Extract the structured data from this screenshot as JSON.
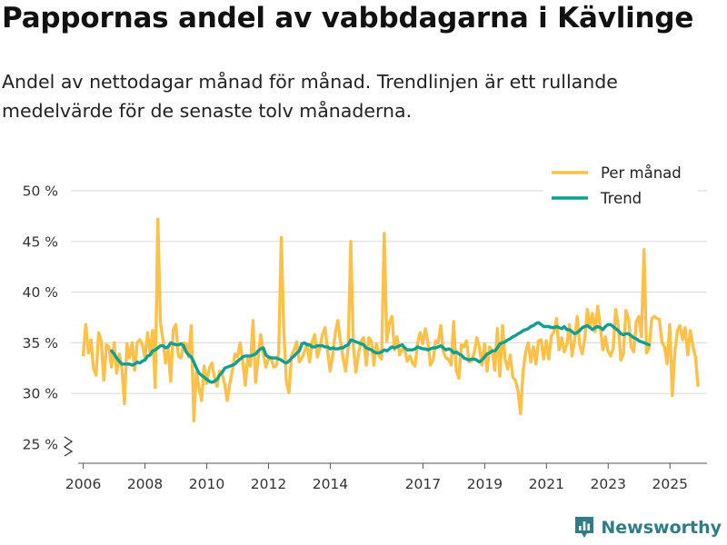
{
  "header": {
    "title": "Pappornas andel av vabbdagarna i Kävlinge",
    "subtitle": "Andel av nettodagar månad för månad. Trendlinjen är ett rullande medelvärde för de senaste tolv månaderna."
  },
  "brand": {
    "name": "Newsworthy",
    "icon": "bar-chart-logo-icon"
  },
  "colors": {
    "per_month": "#fcc146",
    "trend": "#0f9e92",
    "grid": "#dddddd",
    "axis_text": "#333333",
    "brand": "#2f7d86"
  },
  "chart_data": {
    "type": "line",
    "title": "Pappornas andel av vabbdagarna i Kävlinge",
    "xlabel": "",
    "ylabel": "",
    "xlim": [
      2005.6,
      2026.2
    ],
    "ylim": [
      25,
      50
    ],
    "y_ticks": [
      25,
      30,
      35,
      40,
      45,
      50
    ],
    "y_tick_labels": [
      "25 %",
      "30 %",
      "35 %",
      "40 %",
      "45 %",
      "50 %"
    ],
    "x_ticks": [
      2006,
      2008,
      2010,
      2012,
      2014,
      2017,
      2019,
      2021,
      2023,
      2025
    ],
    "x_tick_labels": [
      "2006",
      "2008",
      "2010",
      "2012",
      "2014",
      "2017",
      "2019",
      "2021",
      "2023",
      "2025"
    ],
    "axis_break": true,
    "grid": true,
    "legend_position": "top-right",
    "series": [
      {
        "name": "Per månad",
        "x_start": 2006.0,
        "x_step": 0.0833,
        "values": [
          33.8,
          36.8,
          34,
          35.3,
          32.5,
          31.8,
          36,
          35.2,
          31.3,
          34.8,
          34.6,
          32.6,
          35,
          32,
          33.9,
          32.5,
          29,
          34.9,
          33.5,
          35,
          32.3,
          35,
          35.3,
          34.8,
          33.5,
          36,
          34,
          36.2,
          30.6,
          47.2,
          37,
          35.3,
          33,
          34.4,
          31.2,
          36.3,
          36.8,
          33.7,
          33.5,
          35,
          34.9,
          33.6,
          36.7,
          27.3,
          32.1,
          30.6,
          29.3,
          32.7,
          31,
          32.5,
          33,
          31.6,
          30.7,
          32.2,
          31.9,
          30.9,
          29.3,
          31,
          32.3,
          33.9,
          33.6,
          35,
          33.2,
          30.8,
          33.6,
          32.7,
          37.2,
          31.1,
          33.6,
          35.8,
          34,
          32.6,
          33.4,
          33.6,
          32.6,
          32.7,
          34,
          45.4,
          36,
          31.1,
          30.1,
          33.8,
          34.3,
          35.1,
          33.1,
          33.5,
          34.1,
          34.9,
          33.1,
          35.1,
          35.8,
          33.6,
          34.5,
          35.8,
          36.5,
          34.2,
          32.2,
          33.8,
          36,
          37.2,
          35.1,
          33.5,
          32.2,
          34.5,
          45,
          34.7,
          32.1,
          33.9,
          35.2,
          35.5,
          32.8,
          35.5,
          35.2,
          32.8,
          34.9,
          33.7,
          33.4,
          45.8,
          35.2,
          36.9,
          37.6,
          34.3,
          35.6,
          33.8,
          34.4,
          34.3,
          33.2,
          33.7,
          33,
          32.7,
          35,
          36,
          34.9,
          36.4,
          35,
          32.8,
          33.3,
          35.2,
          35,
          36.7,
          34.1,
          33.5,
          33.4,
          32.8,
          37.1,
          32.3,
          31.5,
          34.8,
          34.6,
          35.2,
          33.1,
          33.2,
          34,
          35.5,
          34.6,
          32.8,
          34.9,
          32.2,
          34.6,
          34.2,
          32.3,
          36.4,
          31.7,
          36.7,
          33.4,
          32.4,
          33.8,
          31.6,
          31.3,
          30.3,
          28,
          32.2,
          34.1,
          35,
          33.1,
          34.6,
          32.9,
          35.2,
          35.3,
          33.4,
          35.2,
          33.4,
          35.7,
          36.1,
          37.4,
          34.3,
          35.5,
          34.1,
          34.8,
          36.8,
          33.7,
          35.2,
          37.6,
          34.8,
          33.9,
          35.5,
          38.3,
          36.6,
          37.9,
          36.1,
          38.6,
          36.6,
          34.3,
          35.6,
          34.2,
          33.7,
          34.4,
          38.3,
          36.6,
          33.3,
          33.9,
          38.2,
          37.3,
          34.6,
          34.1,
          37.1,
          37.6,
          35.6,
          44.2,
          34,
          34.5,
          37.4,
          37.6,
          37.4,
          37.3,
          35,
          34.6,
          32.9,
          36.8,
          29.8,
          34.1,
          36.2,
          36.7,
          35.3,
          36.5,
          33.8,
          36.2,
          34.7,
          33.6,
          30.8
        ],
        "color": "#fcc146"
      },
      {
        "name": "Trend",
        "x_start": 2006.917,
        "x_step": 0.0833,
        "values": [
          34.2,
          33.9,
          33.5,
          33.2,
          32.9,
          32.9,
          32.9,
          32.9,
          32.8,
          32.9,
          33.1,
          33,
          33.2,
          33.3,
          33.7,
          33.8,
          34.2,
          34.3,
          34.5,
          34.7,
          34.7,
          34.5,
          34.6,
          35,
          34.9,
          34.8,
          34.8,
          34.9,
          34.7,
          34.1,
          33.8,
          33.6,
          33.1,
          32.5,
          32,
          31.8,
          31.6,
          31.4,
          31.2,
          31.1,
          31.2,
          31.4,
          31.8,
          32.1,
          32.5,
          32.6,
          32.7,
          32.8,
          32.9,
          33.2,
          33.4,
          33.6,
          33.7,
          33.7,
          33.7,
          33.8,
          33.9,
          34.2,
          34.4,
          34.5,
          33.8,
          33.6,
          33.5,
          33.5,
          33.5,
          33.4,
          33.3,
          33.1,
          33,
          33.2,
          33.5,
          33.7,
          34,
          34.2,
          34.9,
          35,
          34.8,
          34.8,
          34.6,
          34.6,
          34.7,
          34.7,
          34.7,
          34.6,
          34.6,
          34.4,
          34.5,
          34.4,
          34.4,
          34.5,
          34.5,
          34.7,
          34.8,
          35.3,
          35.2,
          35.1,
          35,
          34.9,
          34.8,
          34.5,
          34.4,
          34.3,
          34.1,
          34,
          34,
          34.1,
          34.3,
          34.2,
          34.4,
          34.6,
          34.5,
          34.6,
          34.7,
          34.8,
          34.5,
          34.3,
          34.3,
          34.3,
          34.4,
          34.6,
          34.5,
          34.4,
          34.4,
          34.3,
          34.4,
          34.5,
          34.5,
          34.6,
          34.7,
          34.5,
          34.3,
          34.4,
          34.3,
          34,
          34.1,
          33.9,
          33.8,
          33.5,
          33.4,
          33.3,
          33.4,
          33.4,
          33.3,
          33.1,
          33.3,
          33.6,
          33.9,
          34,
          34.2,
          34.2,
          34.5,
          34.9,
          35,
          35.1,
          35.3,
          35.4,
          35.6,
          35.7,
          35.9,
          36,
          36.2,
          36.3,
          36.4,
          36.6,
          36.7,
          36.9,
          37,
          36.8,
          36.6,
          36.6,
          36.6,
          36.5,
          36.5,
          36.6,
          36.5,
          36.4,
          36.6,
          36.3,
          36.3,
          36.1,
          35.9,
          36,
          36.2,
          36.5,
          36.6,
          36.7,
          36.5,
          36.3,
          36.5,
          36.6,
          36.5,
          36.3,
          36.6,
          36.8,
          36.8,
          36.6,
          36.4,
          36.2,
          35.9,
          35.8,
          35.9,
          35.9,
          35.7,
          35.5,
          35.4,
          35.2,
          35.1,
          35,
          34.9,
          34.8
        ],
        "color": "#0f9e92"
      }
    ],
    "legend": [
      "Per månad",
      "Trend"
    ]
  }
}
